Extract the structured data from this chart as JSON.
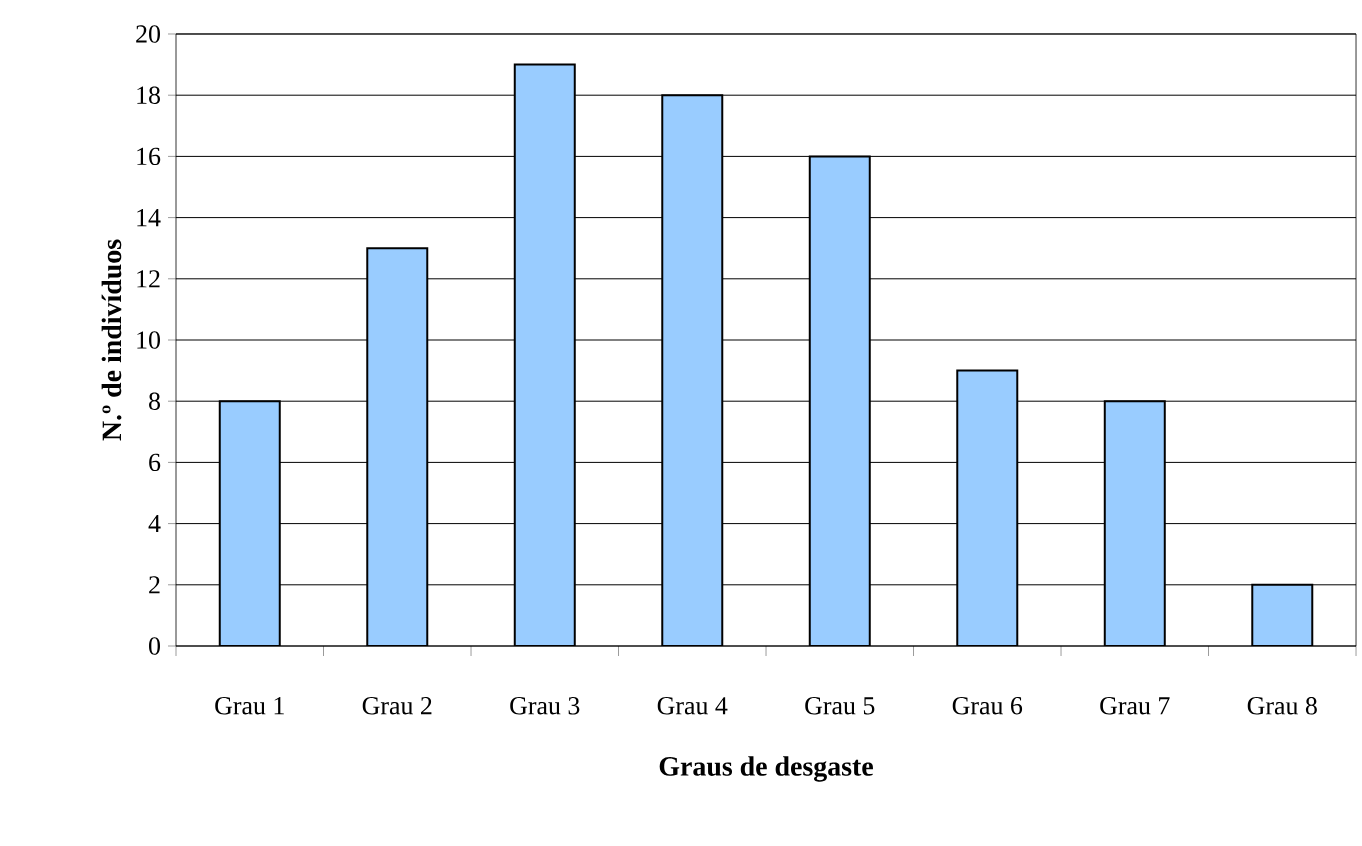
{
  "chart_data": {
    "type": "bar",
    "xlabel": "Graus de desgaste",
    "ylabel": "N.º de indivíduos",
    "categories": [
      "Grau 1",
      "Grau 2",
      "Grau 3",
      "Grau 4",
      "Grau 5",
      "Grau 6",
      "Grau 7",
      "Grau 8"
    ],
    "values": [
      8,
      13,
      19,
      18,
      16,
      9,
      8,
      2
    ],
    "color": "#99ccff",
    "ylim": [
      0,
      20
    ],
    "yticks": [
      0,
      2,
      4,
      6,
      8,
      10,
      12,
      14,
      16,
      18,
      20
    ],
    "grid": "y"
  }
}
